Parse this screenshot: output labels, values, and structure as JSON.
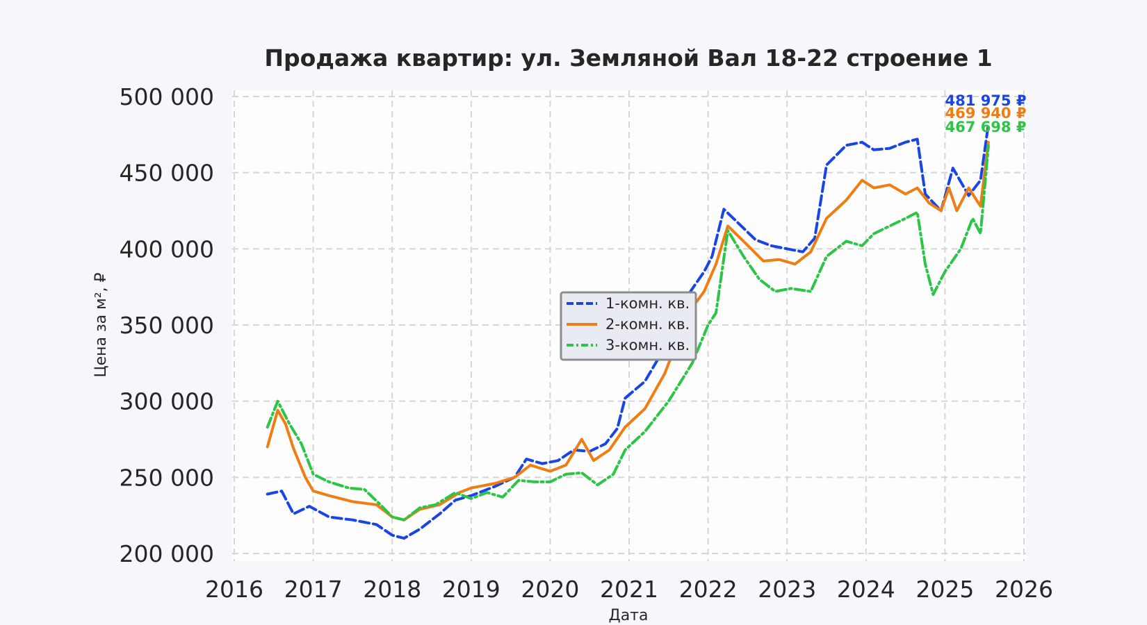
{
  "chart_data": {
    "type": "line",
    "title": "Продажа квартир: ул. Земляной Вал 18-22 строение 1",
    "xlabel": "Дата",
    "ylabel": "Цена за м², ₽",
    "xlim": [
      2016,
      2026
    ],
    "ylim": [
      195000,
      505000
    ],
    "x_ticks": [
      "2016",
      "2017",
      "2018",
      "2019",
      "2020",
      "2021",
      "2022",
      "2023",
      "2024",
      "2025",
      "2026"
    ],
    "y_ticks": [
      "200 000",
      "250 000",
      "300 000",
      "350 000",
      "400 000",
      "450 000",
      "500 000"
    ],
    "grid": true,
    "legend_position": "center",
    "series": [
      {
        "name": "1-комн. кв.",
        "color": "#1a45e6",
        "style": "dashed",
        "end_label": "481 975 ₽",
        "points": [
          [
            2016.42,
            239000
          ],
          [
            2016.6,
            241000
          ],
          [
            2016.75,
            226000
          ],
          [
            2016.95,
            231000
          ],
          [
            2017.2,
            224000
          ],
          [
            2017.5,
            222000
          ],
          [
            2017.8,
            219000
          ],
          [
            2018.0,
            212000
          ],
          [
            2018.15,
            210000
          ],
          [
            2018.35,
            216000
          ],
          [
            2018.6,
            226000
          ],
          [
            2018.8,
            235000
          ],
          [
            2019.0,
            238000
          ],
          [
            2019.3,
            244000
          ],
          [
            2019.55,
            250000
          ],
          [
            2019.7,
            262000
          ],
          [
            2019.9,
            259000
          ],
          [
            2020.1,
            261000
          ],
          [
            2020.3,
            268000
          ],
          [
            2020.5,
            267000
          ],
          [
            2020.7,
            272000
          ],
          [
            2020.85,
            282000
          ],
          [
            2020.95,
            302000
          ],
          [
            2021.2,
            313000
          ],
          [
            2021.45,
            335000
          ],
          [
            2021.75,
            370000
          ],
          [
            2021.95,
            385000
          ],
          [
            2022.05,
            395000
          ],
          [
            2022.2,
            426000
          ],
          [
            2022.4,
            416000
          ],
          [
            2022.6,
            406000
          ],
          [
            2022.8,
            402000
          ],
          [
            2023.0,
            400000
          ],
          [
            2023.2,
            398000
          ],
          [
            2023.35,
            407000
          ],
          [
            2023.5,
            455000
          ],
          [
            2023.75,
            468000
          ],
          [
            2023.95,
            470000
          ],
          [
            2024.1,
            465000
          ],
          [
            2024.3,
            466000
          ],
          [
            2024.5,
            470000
          ],
          [
            2024.65,
            472000
          ],
          [
            2024.75,
            436000
          ],
          [
            2024.95,
            425000
          ],
          [
            2025.1,
            453000
          ],
          [
            2025.3,
            435000
          ],
          [
            2025.45,
            445000
          ],
          [
            2025.55,
            481975
          ]
        ]
      },
      {
        "name": "2-комн. кв.",
        "color": "#f07d12",
        "style": "solid",
        "end_label": "469 940 ₽",
        "points": [
          [
            2016.42,
            270000
          ],
          [
            2016.55,
            294000
          ],
          [
            2016.65,
            285000
          ],
          [
            2016.75,
            269000
          ],
          [
            2016.9,
            250000
          ],
          [
            2017.0,
            241000
          ],
          [
            2017.2,
            238000
          ],
          [
            2017.5,
            234000
          ],
          [
            2017.8,
            232000
          ],
          [
            2018.0,
            224000
          ],
          [
            2018.15,
            222000
          ],
          [
            2018.35,
            229000
          ],
          [
            2018.6,
            232000
          ],
          [
            2018.85,
            240000
          ],
          [
            2019.0,
            243000
          ],
          [
            2019.3,
            246000
          ],
          [
            2019.55,
            250000
          ],
          [
            2019.75,
            258000
          ],
          [
            2020.0,
            254000
          ],
          [
            2020.2,
            258000
          ],
          [
            2020.4,
            275000
          ],
          [
            2020.55,
            261000
          ],
          [
            2020.75,
            268000
          ],
          [
            2020.95,
            283000
          ],
          [
            2021.2,
            295000
          ],
          [
            2021.45,
            318000
          ],
          [
            2021.75,
            358000
          ],
          [
            2021.95,
            372000
          ],
          [
            2022.1,
            390000
          ],
          [
            2022.25,
            415000
          ],
          [
            2022.45,
            405000
          ],
          [
            2022.7,
            392000
          ],
          [
            2022.9,
            393000
          ],
          [
            2023.1,
            390000
          ],
          [
            2023.3,
            398000
          ],
          [
            2023.5,
            420000
          ],
          [
            2023.75,
            432000
          ],
          [
            2023.95,
            445000
          ],
          [
            2024.1,
            440000
          ],
          [
            2024.3,
            442000
          ],
          [
            2024.5,
            436000
          ],
          [
            2024.65,
            440000
          ],
          [
            2024.8,
            430000
          ],
          [
            2024.95,
            425000
          ],
          [
            2025.05,
            440000
          ],
          [
            2025.15,
            425000
          ],
          [
            2025.3,
            440000
          ],
          [
            2025.45,
            428000
          ],
          [
            2025.55,
            469940
          ]
        ]
      },
      {
        "name": "3-комн. кв.",
        "color": "#2ec447",
        "style": "dashdot",
        "end_label": "467 698 ₽",
        "points": [
          [
            2016.42,
            283000
          ],
          [
            2016.55,
            300000
          ],
          [
            2016.7,
            285000
          ],
          [
            2016.85,
            272000
          ],
          [
            2017.0,
            252000
          ],
          [
            2017.2,
            247000
          ],
          [
            2017.45,
            243000
          ],
          [
            2017.65,
            242000
          ],
          [
            2017.85,
            232000
          ],
          [
            2018.0,
            224000
          ],
          [
            2018.15,
            222000
          ],
          [
            2018.35,
            230000
          ],
          [
            2018.55,
            232000
          ],
          [
            2018.8,
            240000
          ],
          [
            2019.0,
            236000
          ],
          [
            2019.2,
            240000
          ],
          [
            2019.4,
            237000
          ],
          [
            2019.6,
            248000
          ],
          [
            2019.8,
            247000
          ],
          [
            2020.0,
            247000
          ],
          [
            2020.2,
            252000
          ],
          [
            2020.4,
            253000
          ],
          [
            2020.6,
            245000
          ],
          [
            2020.8,
            252000
          ],
          [
            2020.95,
            268000
          ],
          [
            2021.2,
            280000
          ],
          [
            2021.5,
            300000
          ],
          [
            2021.8,
            325000
          ],
          [
            2022.0,
            350000
          ],
          [
            2022.1,
            358000
          ],
          [
            2022.25,
            412000
          ],
          [
            2022.45,
            395000
          ],
          [
            2022.65,
            380000
          ],
          [
            2022.85,
            372000
          ],
          [
            2023.05,
            374000
          ],
          [
            2023.3,
            372000
          ],
          [
            2023.5,
            395000
          ],
          [
            2023.75,
            405000
          ],
          [
            2023.95,
            402000
          ],
          [
            2024.1,
            410000
          ],
          [
            2024.3,
            415000
          ],
          [
            2024.5,
            420000
          ],
          [
            2024.65,
            424000
          ],
          [
            2024.75,
            390000
          ],
          [
            2024.85,
            370000
          ],
          [
            2025.0,
            385000
          ],
          [
            2025.2,
            400000
          ],
          [
            2025.35,
            420000
          ],
          [
            2025.45,
            410000
          ],
          [
            2025.55,
            467698
          ]
        ]
      }
    ]
  }
}
